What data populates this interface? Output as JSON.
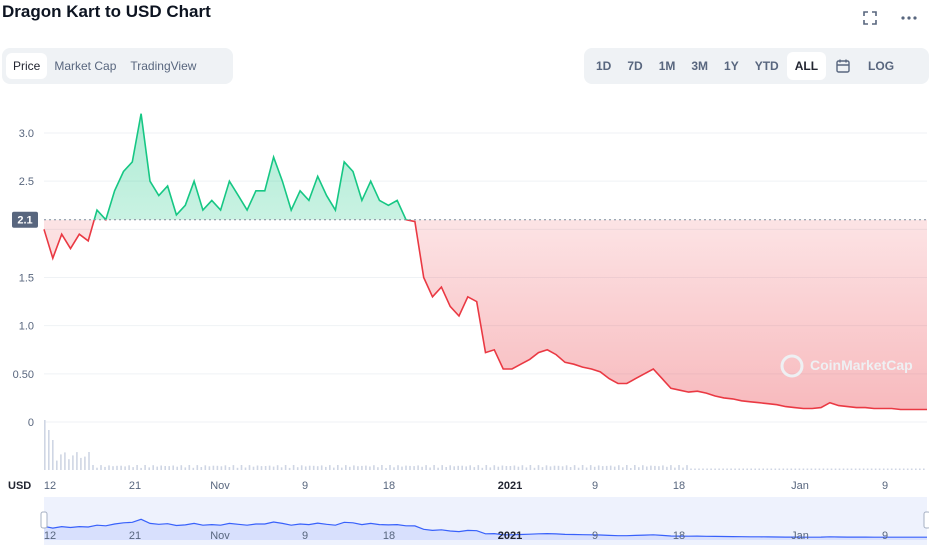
{
  "header": {
    "title": "Dragon Kart to USD Chart",
    "fullscreen_icon": "fullscreen-icon",
    "more_icon": "more-icon"
  },
  "tabs": [
    {
      "label": "Price",
      "active": true
    },
    {
      "label": "Market Cap",
      "active": false
    },
    {
      "label": "TradingView",
      "active": false
    }
  ],
  "ranges": [
    {
      "label": "1D",
      "active": false
    },
    {
      "label": "7D",
      "active": false
    },
    {
      "label": "1M",
      "active": false
    },
    {
      "label": "3M",
      "active": false
    },
    {
      "label": "1Y",
      "active": false
    },
    {
      "label": "YTD",
      "active": false
    },
    {
      "label": "ALL",
      "active": true
    }
  ],
  "calendar_icon": "calendar-icon",
  "log_label": "LOG",
  "watermark": "CoinMarketCap",
  "colors": {
    "up": "#16c784",
    "down": "#ea3943",
    "navigator": "#3861fb"
  },
  "chart_data": {
    "type": "area",
    "title": "Dragon Kart to USD Chart",
    "ylabel": "USD",
    "ylim": [
      0,
      3.3
    ],
    "y_ticks": [
      "3.0",
      "2.5",
      "2.0",
      "1.5",
      "1.0",
      "0.50",
      "0"
    ],
    "x_ticks": [
      "12",
      "21",
      "Nov",
      "9",
      "18",
      "2021",
      "9",
      "18",
      "Jan",
      "9"
    ],
    "reference_price": 2.1,
    "reference_label": "2.1",
    "navigator_ticks": [
      "12",
      "21",
      "Nov",
      "9",
      "18",
      "2021",
      "9",
      "18",
      "Jan",
      "9"
    ],
    "price_series": [
      [
        0,
        2.0
      ],
      [
        1,
        1.7
      ],
      [
        2,
        1.95
      ],
      [
        3,
        1.8
      ],
      [
        4,
        1.95
      ],
      [
        5,
        1.88
      ],
      [
        6,
        2.2
      ],
      [
        7,
        2.1
      ],
      [
        8,
        2.4
      ],
      [
        9,
        2.6
      ],
      [
        10,
        2.7
      ],
      [
        11,
        3.2
      ],
      [
        12,
        2.5
      ],
      [
        13,
        2.35
      ],
      [
        14,
        2.45
      ],
      [
        15,
        2.15
      ],
      [
        16,
        2.25
      ],
      [
        17,
        2.5
      ],
      [
        18,
        2.2
      ],
      [
        19,
        2.3
      ],
      [
        20,
        2.2
      ],
      [
        21,
        2.5
      ],
      [
        22,
        2.35
      ],
      [
        23,
        2.2
      ],
      [
        24,
        2.4
      ],
      [
        25,
        2.4
      ],
      [
        26,
        2.75
      ],
      [
        27,
        2.5
      ],
      [
        28,
        2.2
      ],
      [
        29,
        2.4
      ],
      [
        30,
        2.3
      ],
      [
        31,
        2.55
      ],
      [
        32,
        2.35
      ],
      [
        33,
        2.2
      ],
      [
        34,
        2.7
      ],
      [
        35,
        2.6
      ],
      [
        36,
        2.3
      ],
      [
        37,
        2.5
      ],
      [
        38,
        2.3
      ],
      [
        39,
        2.25
      ],
      [
        40,
        2.3
      ],
      [
        41,
        2.1
      ],
      [
        42,
        2.08
      ],
      [
        43,
        1.5
      ],
      [
        44,
        1.3
      ],
      [
        45,
        1.4
      ],
      [
        46,
        1.2
      ],
      [
        47,
        1.1
      ],
      [
        48,
        1.3
      ],
      [
        49,
        1.25
      ],
      [
        50,
        0.72
      ],
      [
        51,
        0.75
      ],
      [
        52,
        0.55
      ],
      [
        53,
        0.55
      ],
      [
        54,
        0.6
      ],
      [
        55,
        0.65
      ],
      [
        56,
        0.72
      ],
      [
        57,
        0.75
      ],
      [
        58,
        0.7
      ],
      [
        59,
        0.62
      ],
      [
        60,
        0.6
      ],
      [
        61,
        0.57
      ],
      [
        62,
        0.55
      ],
      [
        63,
        0.52
      ],
      [
        64,
        0.45
      ],
      [
        65,
        0.4
      ],
      [
        66,
        0.4
      ],
      [
        67,
        0.45
      ],
      [
        68,
        0.5
      ],
      [
        69,
        0.55
      ],
      [
        70,
        0.45
      ],
      [
        71,
        0.35
      ],
      [
        72,
        0.33
      ],
      [
        73,
        0.31
      ],
      [
        74,
        0.32
      ],
      [
        75,
        0.3
      ],
      [
        76,
        0.27
      ],
      [
        77,
        0.25
      ],
      [
        78,
        0.24
      ],
      [
        79,
        0.22
      ],
      [
        80,
        0.21
      ],
      [
        81,
        0.2
      ],
      [
        82,
        0.19
      ],
      [
        83,
        0.18
      ],
      [
        84,
        0.16
      ],
      [
        85,
        0.15
      ],
      [
        86,
        0.14
      ],
      [
        87,
        0.14
      ],
      [
        88,
        0.15
      ],
      [
        89,
        0.2
      ],
      [
        90,
        0.17
      ],
      [
        91,
        0.16
      ],
      [
        92,
        0.15
      ],
      [
        93,
        0.15
      ],
      [
        94,
        0.14
      ],
      [
        95,
        0.14
      ],
      [
        96,
        0.14
      ],
      [
        97,
        0.13
      ],
      [
        98,
        0.13
      ],
      [
        99,
        0.13
      ],
      [
        100,
        0.13
      ]
    ]
  }
}
